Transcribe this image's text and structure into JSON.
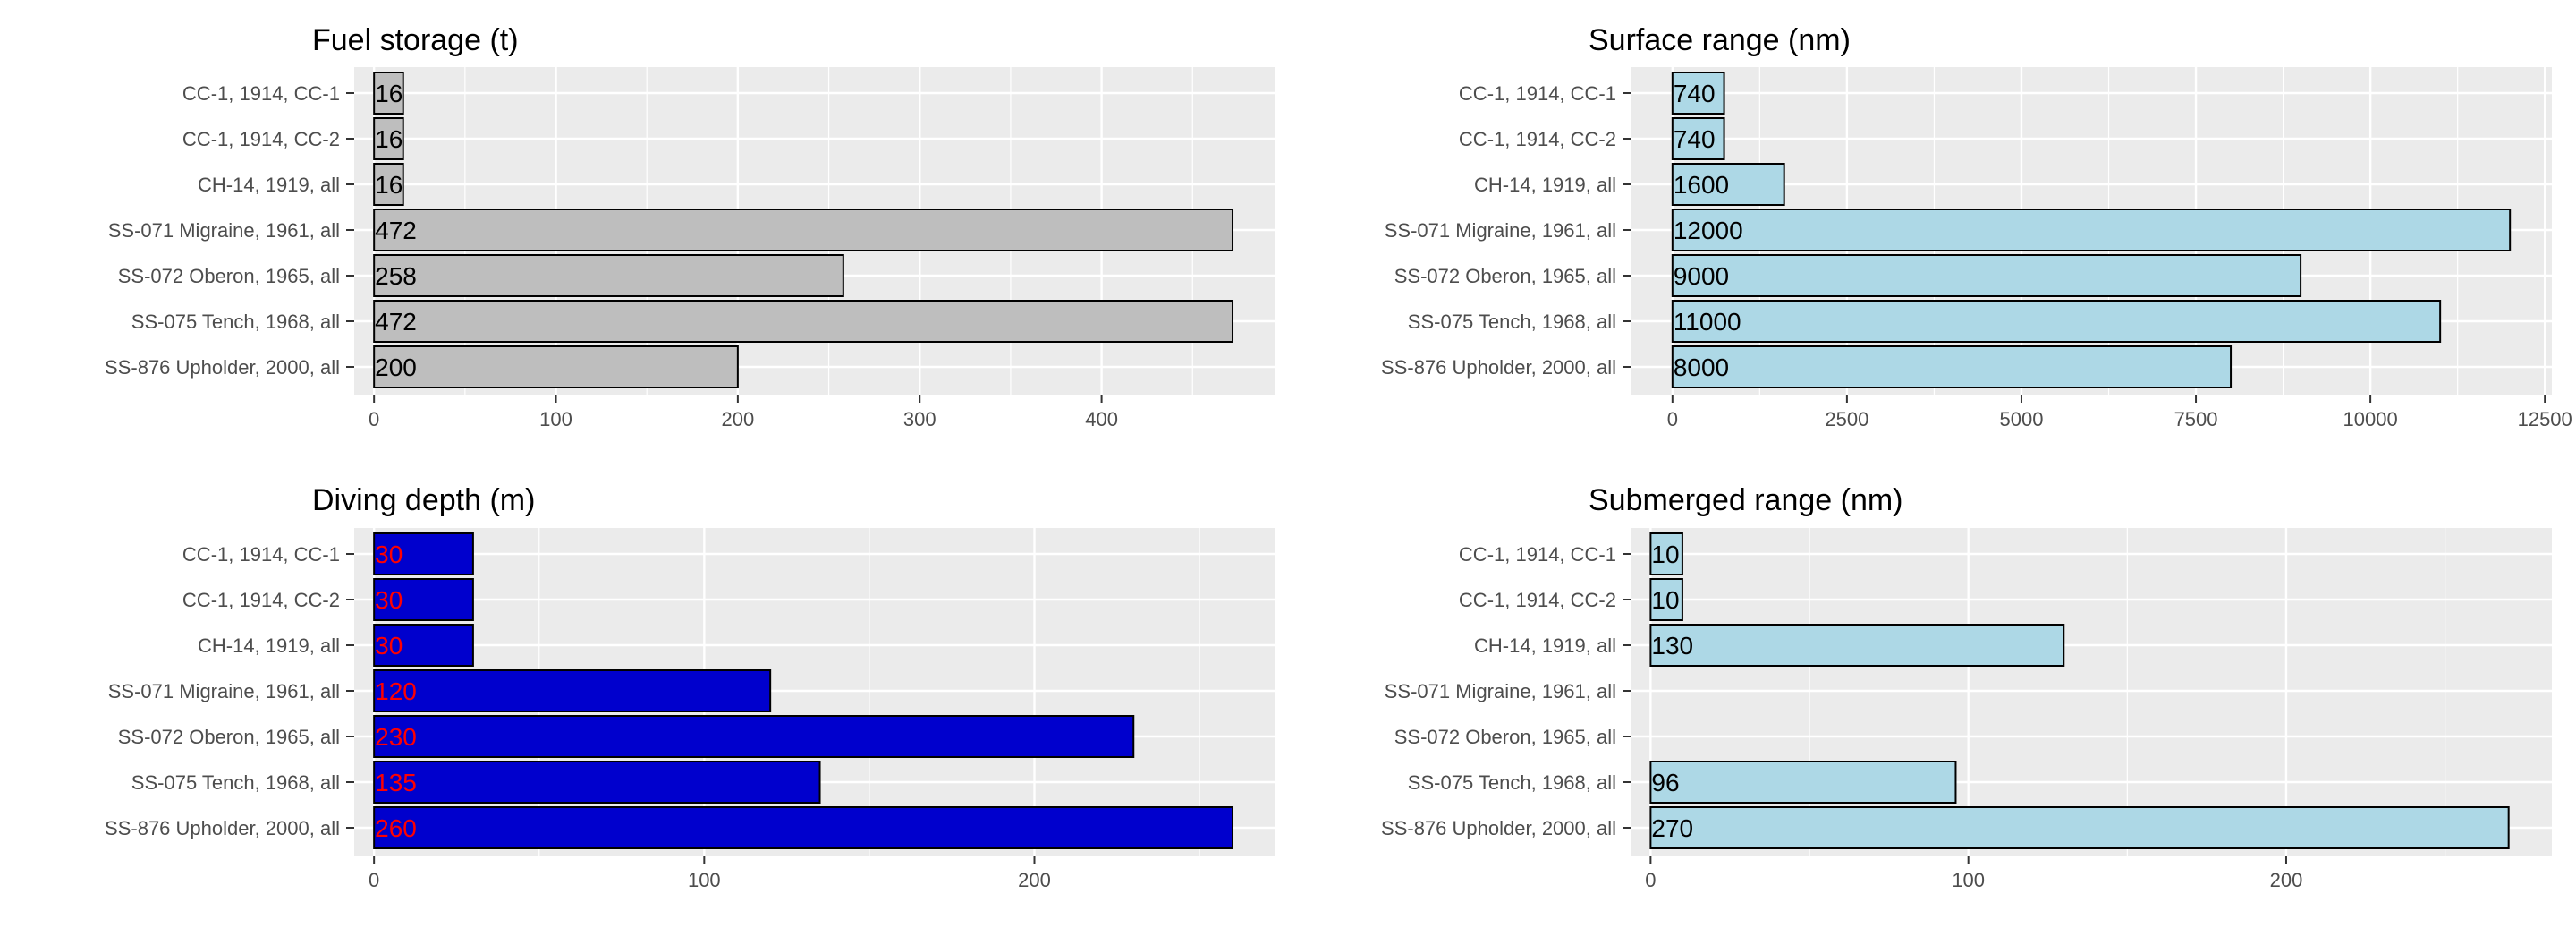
{
  "chart_data": [
    {
      "type": "bar",
      "orientation": "horizontal",
      "title": "Fuel storage (t)",
      "categories": [
        "CC-1, 1914, CC-1",
        "CC-1, 1914, CC-2",
        "CH-14, 1919, all",
        "SS-071 Migraine, 1961, all",
        "SS-072 Oberon, 1965, all",
        "SS-075 Tench, 1968, all",
        "SS-876 Upholder, 2000, all"
      ],
      "values": [
        16,
        16,
        16,
        472,
        258,
        472,
        200
      ],
      "data_labels": [
        "16",
        "16",
        "16",
        "472",
        "258",
        "472",
        "200"
      ],
      "xlim": [
        -10.9,
        495.6
      ],
      "ticks": [
        0,
        100,
        200,
        300,
        400
      ],
      "tick_labels": [
        "0",
        "100",
        "200",
        "300",
        "400"
      ],
      "grid": true,
      "bar_fill": "#bebebe",
      "label_color": "#000000"
    },
    {
      "type": "bar",
      "orientation": "horizontal",
      "title": "Surface range (nm)",
      "categories": [
        "CC-1, 1914, CC-1",
        "CC-1, 1914, CC-2",
        "CH-14, 1919, all",
        "SS-071 Migraine, 1961, all",
        "SS-072 Oberon, 1965, all",
        "SS-075 Tench, 1968, all",
        "SS-876 Upholder, 2000, all"
      ],
      "values": [
        740,
        740,
        1600,
        12000,
        9000,
        11000,
        8000
      ],
      "data_labels": [
        "740",
        "740",
        "1600",
        "12000",
        "9000",
        "11000",
        "8000"
      ],
      "xlim": [
        -600,
        12600
      ],
      "ticks": [
        0,
        2500,
        5000,
        7500,
        10000,
        12500
      ],
      "tick_labels": [
        "0",
        "2500",
        "5000",
        "7500",
        "10000",
        "12500"
      ],
      "grid": true,
      "bar_fill": "#add8e6",
      "label_color": "#000000"
    },
    {
      "type": "bar",
      "orientation": "horizontal",
      "title": "Diving depth (m)",
      "categories": [
        "CC-1, 1914, CC-1",
        "CC-1, 1914, CC-2",
        "CH-14, 1919, all",
        "SS-071 Migraine, 1961, all",
        "SS-072 Oberon, 1965, all",
        "SS-075 Tench, 1968, all",
        "SS-876 Upholder, 2000, all"
      ],
      "values": [
        30,
        30,
        30,
        120,
        230,
        135,
        260
      ],
      "data_labels": [
        "30",
        "30",
        "30",
        "120",
        "230",
        "135",
        "260"
      ],
      "xlim": [
        -6.0,
        273.0
      ],
      "ticks": [
        0,
        100,
        200
      ],
      "tick_labels": [
        "0",
        "100",
        "200"
      ],
      "grid": true,
      "bar_fill": "#0000cd",
      "label_color": "#ff0000"
    },
    {
      "type": "bar",
      "orientation": "horizontal",
      "title": "Submerged range (nm)",
      "categories": [
        "CC-1, 1914, CC-1",
        "CC-1, 1914, CC-2",
        "CH-14, 1919, all",
        "SS-071 Migraine, 1961, all",
        "SS-072 Oberon, 1965, all",
        "SS-075 Tench, 1968, all",
        "SS-876 Upholder, 2000, all"
      ],
      "values": [
        10,
        10,
        130,
        null,
        null,
        96,
        270
      ],
      "data_labels": [
        "10",
        "10",
        "130",
        "",
        "",
        "96",
        "270"
      ],
      "xlim": [
        -6.3,
        283.6
      ],
      "ticks": [
        0,
        100,
        200
      ],
      "tick_labels": [
        "0",
        "100",
        "200"
      ],
      "grid": true,
      "bar_fill": "#add8e6",
      "label_color": "#000000"
    }
  ]
}
